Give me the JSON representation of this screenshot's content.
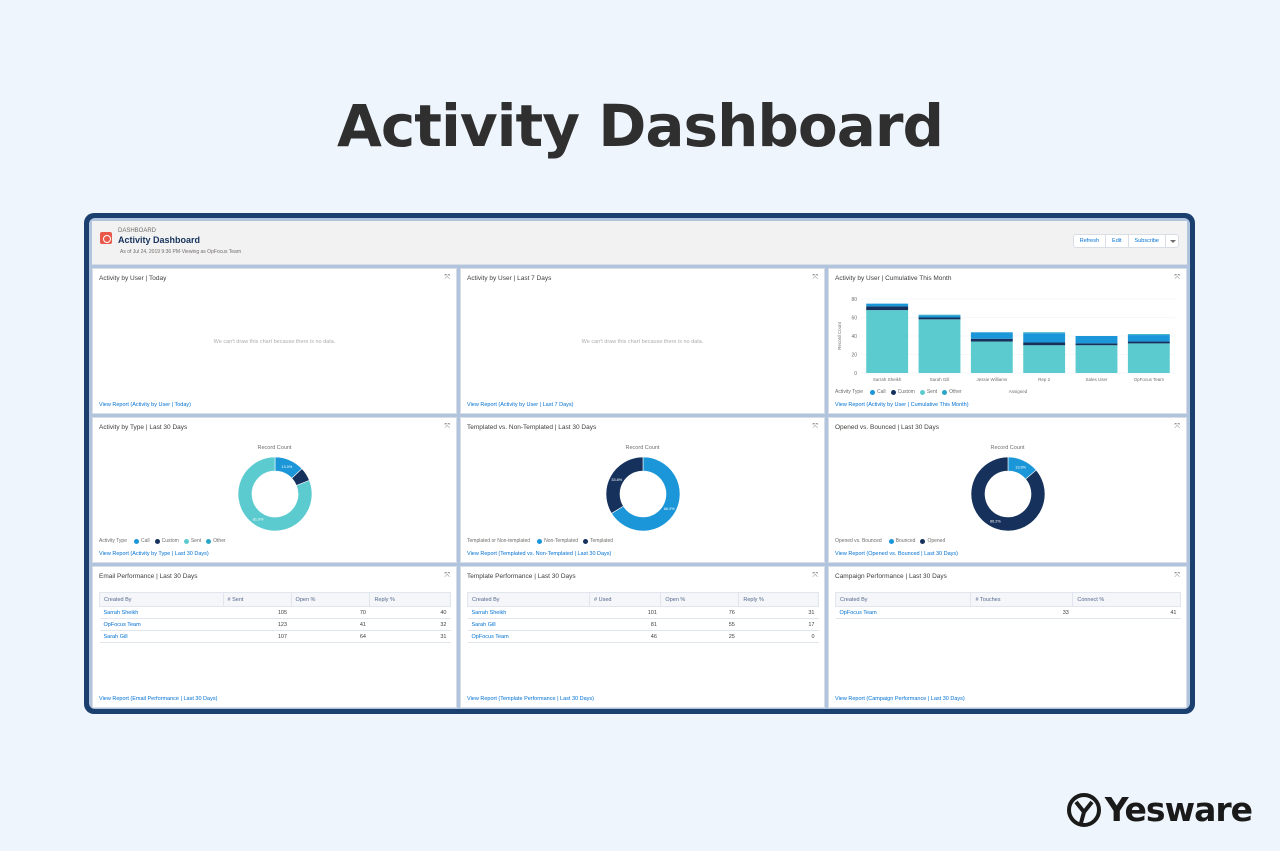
{
  "hero_title": "Activity Dashboard",
  "brand_name": "Yesware",
  "dashboard": {
    "kicker": "DASHBOARD",
    "title": "Activity Dashboard",
    "subtitle": "As of Jul 24, 2019 9:36 PM·Viewing as OpFocus Team",
    "buttons": {
      "refresh": "Refresh",
      "edit": "Edit",
      "subscribe": "Subscribe"
    }
  },
  "colors": {
    "call": "#1b96d8",
    "custom": "#16325c",
    "sent": "#5ccbd0",
    "other": "#2aa6c4",
    "link": "#0070d2"
  },
  "view_report_prefix": "View Report",
  "widgets": {
    "w1": {
      "title": "Activity by User | Today",
      "empty": "We can't draw this chart because there is no data.",
      "link": "View Report (Activity by User | Today)"
    },
    "w2": {
      "title": "Activity by User | Last 7 Days",
      "empty": "We can't draw this chart because there is no data.",
      "link": "View Report (Activity by User | Last 7 Days)"
    },
    "w3": {
      "title": "Activity by User | Cumulative This Month",
      "link": "View Report (Activity by User | Cumulative This Month)"
    },
    "w4": {
      "title": "Activity by Type | Last 30 Days",
      "caption": "Record Count",
      "link": "View Report (Activity by Type | Last 30 Days)"
    },
    "w5": {
      "title": "Templated vs. Non-Templated | Last 30 Days",
      "caption": "Record Count",
      "link": "View Report (Templated vs. Non-Templated | Last 30 Days)"
    },
    "w6": {
      "title": "Opened vs. Bounced | Last 30 Days",
      "caption": "Record Count",
      "link": "View Report (Opened vs. Bounced | Last 30 Days)"
    },
    "w7": {
      "title": "Email Performance | Last 30 Days",
      "columns": [
        "Created By",
        "# Sent",
        "Open %",
        "Reply %"
      ],
      "rows": [
        [
          "Sarrah Sheikh",
          "105",
          "70",
          "40"
        ],
        [
          "OpFocus Team",
          "123",
          "41",
          "32"
        ],
        [
          "Sarah Gill",
          "107",
          "64",
          "31"
        ]
      ],
      "link": "View Report (Email Performance | Last 30 Days)"
    },
    "w8": {
      "title": "Template Performance | Last 30 Days",
      "columns": [
        "Created By",
        "# Used",
        "Open %",
        "Reply %"
      ],
      "rows": [
        [
          "Sarrah Sheikh",
          "101",
          "76",
          "31"
        ],
        [
          "Sarah Gill",
          "81",
          "55",
          "17"
        ],
        [
          "OpFocus Team",
          "46",
          "25",
          "0"
        ]
      ],
      "link": "View Report (Template Performance | Last 30 Days)"
    },
    "w9": {
      "title": "Campaign Performance | Last 30 Days",
      "columns": [
        "Created By",
        "# Touches",
        "Connect %"
      ],
      "rows": [
        [
          "OpFocus Team",
          "33",
          "41"
        ]
      ],
      "link": "View Report (Campaign Performance | Last 30 Days)"
    }
  },
  "chart_data": [
    {
      "type": "bar",
      "title": "Activity by User | Cumulative This Month",
      "xlabel": "Assigned",
      "ylabel": "Record Count",
      "ylim": [
        0,
        80
      ],
      "yticks": [
        "0",
        "20",
        "40",
        "60",
        "80"
      ],
      "legend_title": "Activity Type",
      "categories": [
        "Sarrah Sheikh",
        "Sarah Gill",
        "Jessie Williams",
        "Rep 2",
        "Sales User",
        "OpFocus Team"
      ],
      "series": [
        {
          "name": "Sent",
          "color": "#5ccbd0",
          "values": [
            68,
            58,
            34,
            30,
            30,
            32
          ]
        },
        {
          "name": "Custom",
          "color": "#16325c",
          "values": [
            4,
            2,
            3,
            3,
            2,
            2
          ]
        },
        {
          "name": "Call",
          "color": "#1b96d8",
          "values": [
            3,
            2,
            7,
            10,
            8,
            7
          ]
        },
        {
          "name": "Other",
          "color": "#2aa6c4",
          "values": [
            0,
            1,
            0,
            1,
            0,
            1
          ]
        }
      ],
      "legend_order": [
        "Call",
        "Custom",
        "Sent",
        "Other"
      ]
    },
    {
      "type": "pie",
      "title": "Activity by Type | Last 30 Days",
      "legend_title": "Activity Type",
      "labels": [
        "Call",
        "Custom",
        "Sent",
        "Other"
      ],
      "colors": [
        "#1b96d8",
        "#16325c",
        "#5ccbd0",
        "#2aa6c4"
      ],
      "values": [
        13,
        6,
        81,
        0
      ],
      "donut_labels": [
        "13.0%",
        "",
        "81.0%",
        ""
      ]
    },
    {
      "type": "pie",
      "title": "Templated vs. Non-Templated | Last 30 Days",
      "legend_title": "Templated or Non-templated",
      "labels": [
        "Non-Templated",
        "Templated"
      ],
      "colors": [
        "#1b96d8",
        "#16325c"
      ],
      "values": [
        66.2,
        33.8
      ],
      "donut_labels": [
        "66.2%",
        "33.8%"
      ]
    },
    {
      "type": "pie",
      "title": "Opened vs. Bounced | Last 30 Days",
      "legend_title": "Opened vs. Bounced",
      "labels": [
        "Bounced",
        "Opened"
      ],
      "colors": [
        "#1b96d8",
        "#16325c"
      ],
      "values": [
        13.8,
        86.2
      ],
      "donut_labels": [
        "13.8%",
        "86.2%"
      ]
    }
  ]
}
